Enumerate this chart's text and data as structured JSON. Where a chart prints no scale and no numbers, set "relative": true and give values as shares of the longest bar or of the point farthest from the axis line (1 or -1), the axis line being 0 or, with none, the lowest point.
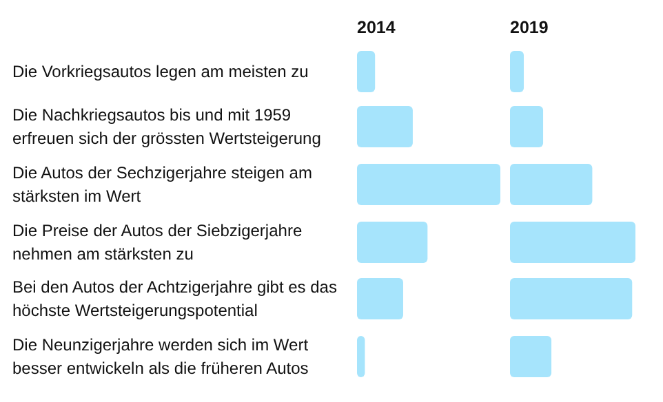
{
  "chart_data": [
    {
      "type": "bar",
      "orientation": "horizontal",
      "relative": true,
      "title": "2014",
      "categories": [
        "Die Vorkriegsautos legen am meisten zu",
        "Die Nachkriegsautos bis und mit 1959 erfreuen sich der grössten Wertsteigerung",
        "Die Autos der Sechzigerjahre steigen am stärksten im Wert",
        "Die Preise der Autos der Siebzigerjahre nehmen am stärksten zu",
        "Bei den Autos der Achtzigerjahre gibt es das höchste Wertsteigerungspotential",
        "Die Neunzigerjahre werden sich im Wert besser entwickeln als die früheren Autos"
      ],
      "series": [
        {
          "color": "#a6e4fc",
          "values": [
            0.126,
            0.389,
            1,
            0.492,
            0.322,
            0.055
          ]
        }
      ]
    },
    {
      "type": "bar",
      "orientation": "horizontal",
      "relative": true,
      "title": "2019",
      "categories": [
        null,
        null,
        null,
        null,
        null,
        null
      ],
      "series": [
        {
          "color": "#a6e4fc",
          "values": [
            0.11,
            0.264,
            0.656,
            1,
            0.974,
            0.33
          ]
        }
      ]
    }
  ]
}
